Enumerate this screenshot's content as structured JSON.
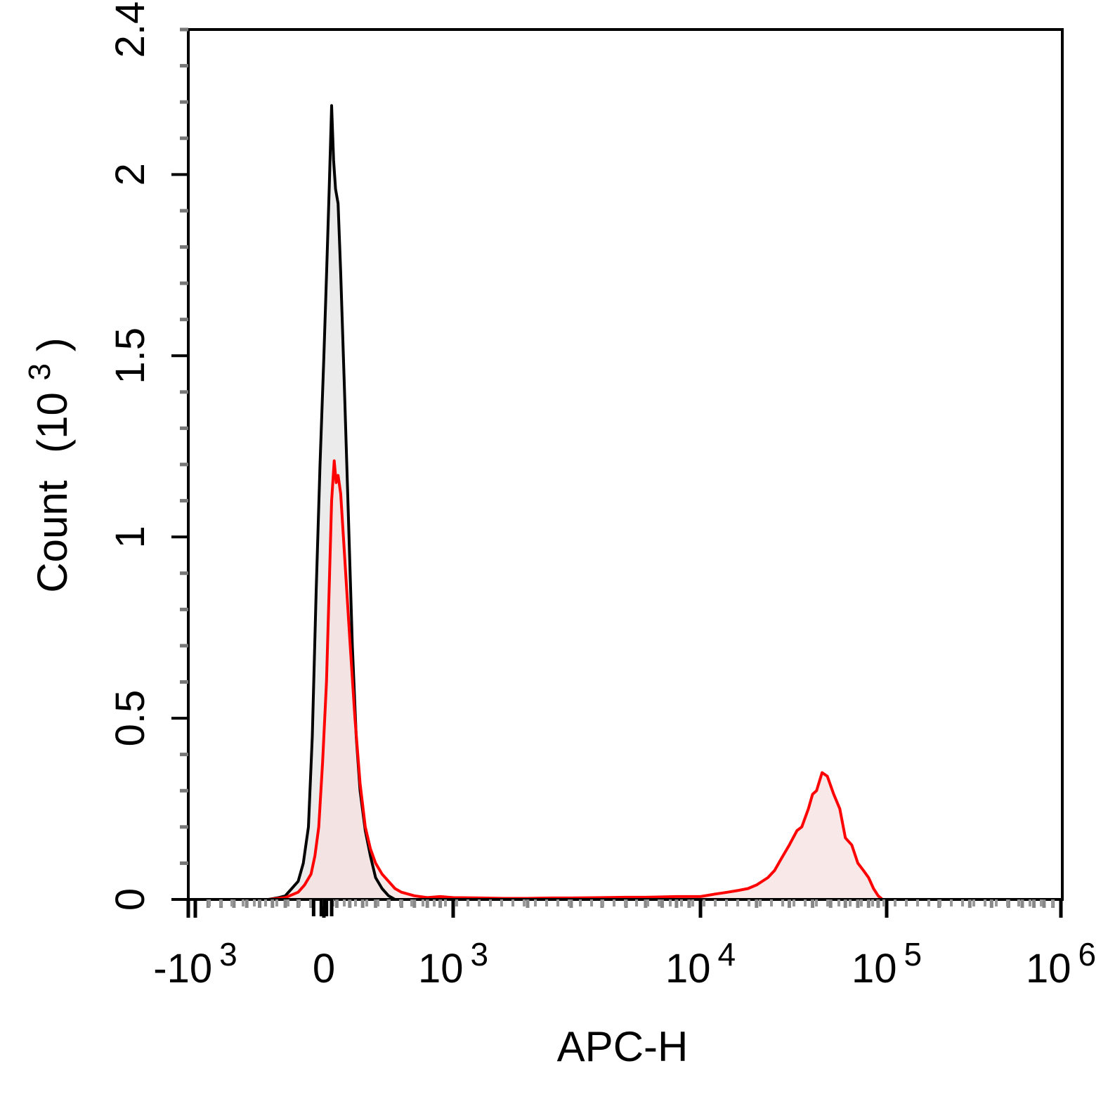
{
  "chart_data": {
    "type": "area",
    "title": "",
    "xlabel": "APC-H",
    "ylabel": {
      "main": "Count",
      "unit_base": "(10",
      "unit_exp": "3",
      "unit_close": ")"
    },
    "x_scale": "biexponential",
    "ylim": [
      0,
      2.4
    ],
    "y_ticks": [
      {
        "value": 0,
        "label": "0"
      },
      {
        "value": 0.5,
        "label": "0.5"
      },
      {
        "value": 1,
        "label": "1"
      },
      {
        "value": 1.5,
        "label": "1.5"
      },
      {
        "value": 2,
        "label": "2"
      },
      {
        "value": 2.4,
        "label": "2.4"
      }
    ],
    "x_ticks": [
      {
        "value": -1000,
        "base": "-10",
        "exp": "3"
      },
      {
        "value": 0,
        "base": "0",
        "exp": ""
      },
      {
        "value": 1000,
        "base": "10",
        "exp": "3"
      },
      {
        "value": 10000,
        "base": "10",
        "exp": "4"
      },
      {
        "value": 100000,
        "base": "10",
        "exp": "5"
      },
      {
        "value": 1000000,
        "base": "10",
        "exp": "6"
      }
    ],
    "grid": false,
    "legend": "none",
    "series": [
      {
        "color": "#000000",
        "fill": "#ebebeb",
        "x": [
          -430,
          -350,
          -300,
          -250,
          -200,
          -160,
          -120,
          -90,
          -60,
          -30,
          0,
          20,
          40,
          60,
          75,
          90,
          110,
          130,
          160,
          190,
          220,
          250,
          280,
          320,
          360,
          400,
          450,
          500,
          550
        ],
        "y": [
          0,
          0.005,
          0.01,
          0.03,
          0.05,
          0.1,
          0.2,
          0.45,
          0.85,
          1.2,
          1.5,
          1.72,
          1.95,
          2.19,
          2.04,
          1.96,
          1.92,
          1.73,
          1.4,
          1.05,
          0.7,
          0.45,
          0.3,
          0.19,
          0.12,
          0.06,
          0.03,
          0.01,
          0
        ]
      },
      {
        "color": "#ff0000",
        "fill": "#f5e0e0",
        "x": [
          -430,
          -300,
          -200,
          -150,
          -100,
          -70,
          -40,
          -10,
          20,
          40,
          60,
          80,
          95,
          110,
          130,
          160,
          200,
          240,
          280,
          320,
          360,
          400,
          450,
          500,
          550,
          600,
          700,
          800,
          900,
          1000,
          1300,
          1600,
          2000,
          2500,
          3000,
          4000,
          5000,
          6000,
          7000,
          8000,
          10000,
          12000,
          14000,
          16000,
          18000,
          20000,
          23000,
          25000,
          27000,
          30000,
          33000,
          35000,
          38000,
          40000,
          42000,
          45000,
          48000,
          52000,
          56000,
          60000,
          65000,
          70000,
          75000,
          80000,
          85000,
          90000,
          95000
        ],
        "y": [
          0,
          0.005,
          0.02,
          0.04,
          0.07,
          0.12,
          0.2,
          0.38,
          0.6,
          0.85,
          1.1,
          1.21,
          1.15,
          1.17,
          1.12,
          0.95,
          0.72,
          0.5,
          0.32,
          0.2,
          0.14,
          0.1,
          0.07,
          0.05,
          0.03,
          0.02,
          0.01,
          0.005,
          0.008,
          0.005,
          0.004,
          0.003,
          0.003,
          0.004,
          0.004,
          0.005,
          0.006,
          0.006,
          0.007,
          0.008,
          0.008,
          0.015,
          0.02,
          0.025,
          0.03,
          0.04,
          0.06,
          0.08,
          0.11,
          0.15,
          0.19,
          0.2,
          0.25,
          0.29,
          0.3,
          0.35,
          0.34,
          0.29,
          0.25,
          0.17,
          0.15,
          0.1,
          0.08,
          0.06,
          0.03,
          0.01,
          0
        ]
      }
    ]
  }
}
